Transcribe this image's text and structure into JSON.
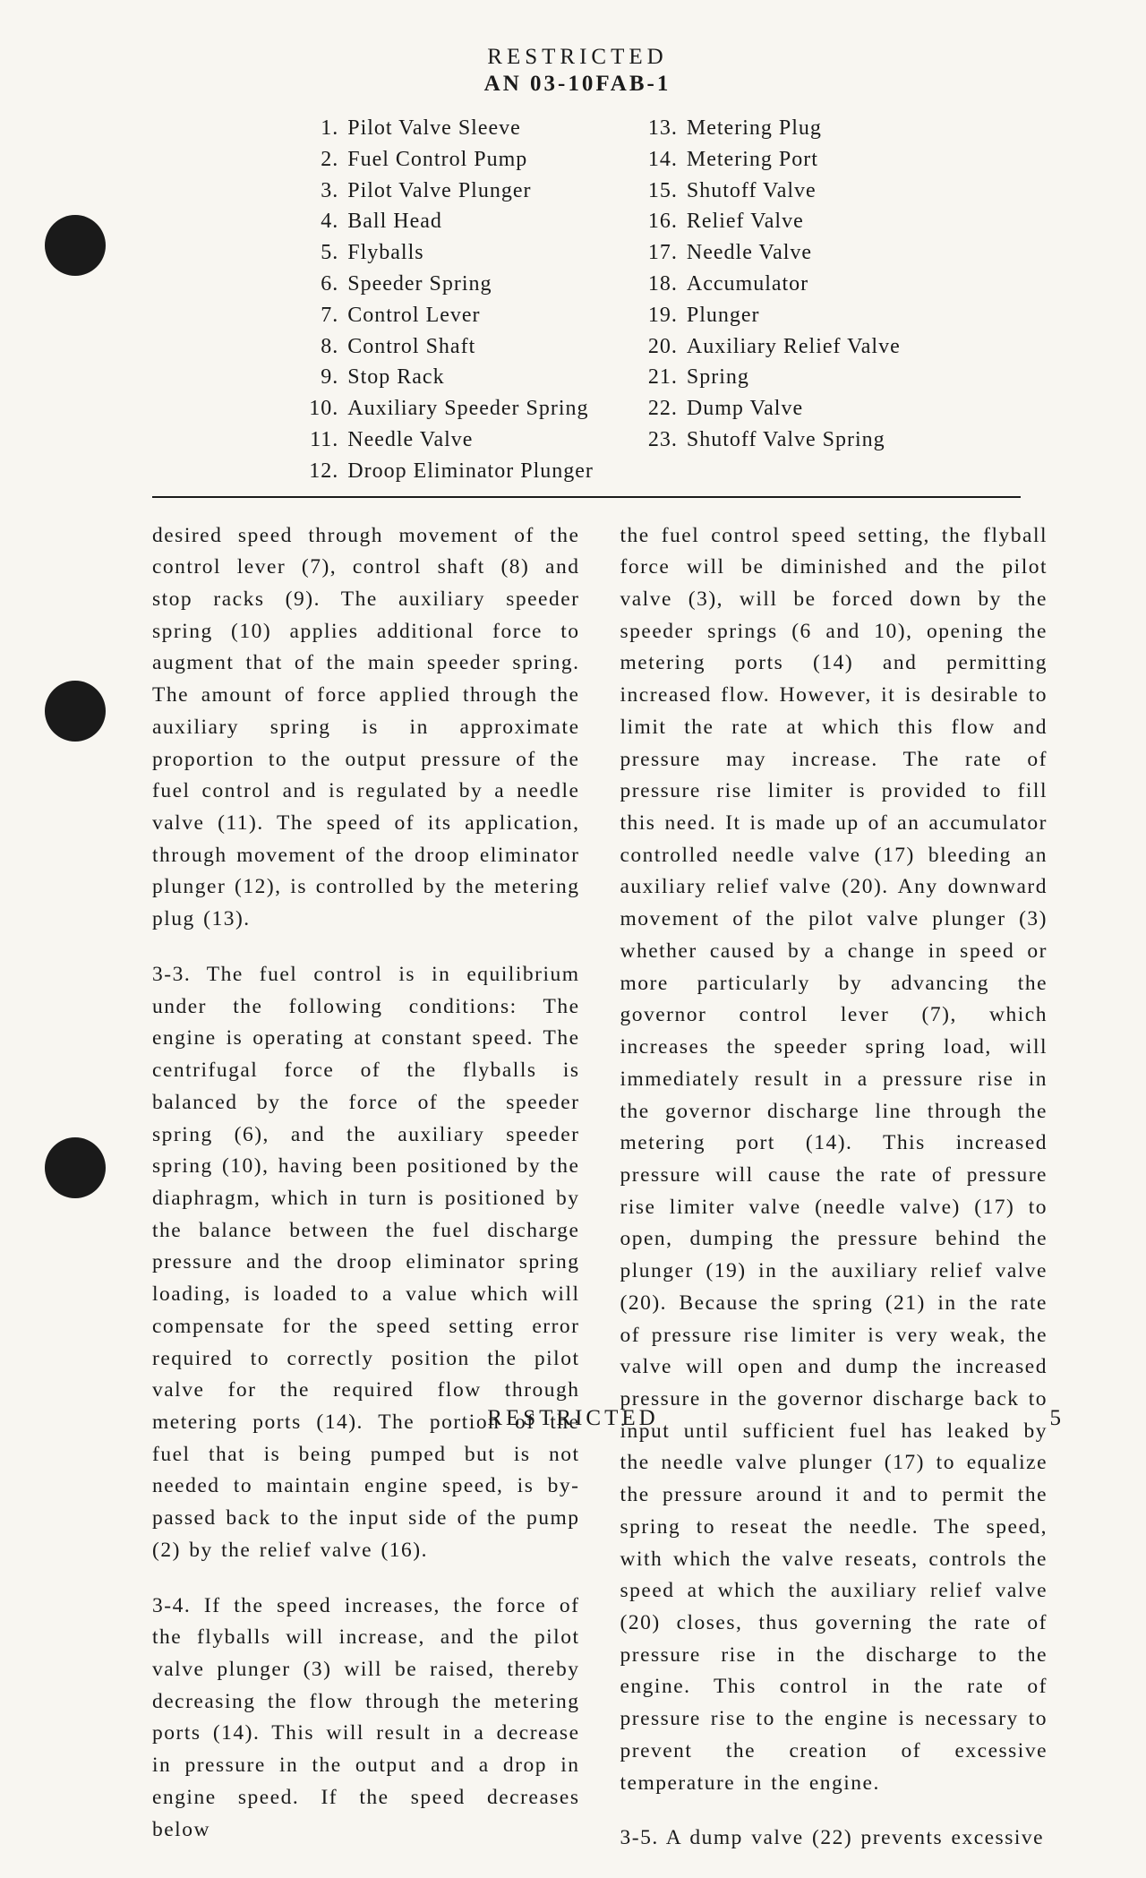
{
  "header": {
    "classification": "RESTRICTED",
    "doc_number": "AN 03-10FAB-1"
  },
  "parts_list": {
    "col1": [
      {
        "n": "1.",
        "label": "Pilot Valve Sleeve"
      },
      {
        "n": "2.",
        "label": "Fuel Control Pump"
      },
      {
        "n": "3.",
        "label": "Pilot Valve Plunger"
      },
      {
        "n": "4.",
        "label": "Ball Head"
      },
      {
        "n": "5.",
        "label": "Flyballs"
      },
      {
        "n": "6.",
        "label": "Speeder Spring"
      },
      {
        "n": "7.",
        "label": "Control Lever"
      },
      {
        "n": "8.",
        "label": "Control Shaft"
      },
      {
        "n": "9.",
        "label": "Stop Rack"
      },
      {
        "n": "10.",
        "label": "Auxiliary Speeder Spring"
      },
      {
        "n": "11.",
        "label": "Needle Valve"
      },
      {
        "n": "12.",
        "label": "Droop Eliminator Plunger"
      }
    ],
    "col2": [
      {
        "n": "13.",
        "label": "Metering Plug"
      },
      {
        "n": "14.",
        "label": "Metering Port"
      },
      {
        "n": "15.",
        "label": "Shutoff Valve"
      },
      {
        "n": "16.",
        "label": "Relief Valve"
      },
      {
        "n": "17.",
        "label": "Needle Valve"
      },
      {
        "n": "18.",
        "label": "Accumulator"
      },
      {
        "n": "19.",
        "label": "Plunger"
      },
      {
        "n": "20.",
        "label": "Auxiliary Relief Valve"
      },
      {
        "n": "21.",
        "label": "Spring"
      },
      {
        "n": "22.",
        "label": "Dump Valve"
      },
      {
        "n": "23.",
        "label": "Shutoff Valve Spring"
      }
    ]
  },
  "body": {
    "left": {
      "p1": "desired speed through movement of the control lever (7), control shaft (8) and stop racks (9). The auxiliary speeder spring (10) applies additional force to augment that of the main speeder spring. The amount of force applied through the auxiliary spring is in approximate proportion to the output pressure of the fuel control and is regulated by a needle valve (11). The speed of its application, through movement of the droop eliminator plunger (12), is controlled by the metering plug (13).",
      "p2": "3-3. The fuel control is in equilibrium under the following conditions: The engine is operating at constant speed. The centrifugal force of the flyballs is balanced by the force of the speeder spring (6), and the auxiliary speeder spring (10), having been positioned by the diaphragm, which in turn is positioned by the balance between the fuel discharge pressure and the droop eliminator spring loading, is loaded to a value which will compensate for the speed setting error required to correctly position the pilot valve for the required flow through metering ports (14). The portion of the fuel that is being pumped but is not needed to maintain engine speed, is by-passed back to the input side of the pump (2) by the relief valve (16).",
      "p3": "3-4. If the speed increases, the force of the flyballs will increase, and the pilot valve plunger (3) will be raised, thereby decreasing the flow through the metering ports (14). This will result in a decrease in pressure in the output and a drop in engine speed. If the speed decreases below"
    },
    "right": {
      "p1": "the fuel control speed setting, the flyball force will be diminished and the pilot valve (3), will be forced down by the speeder springs (6 and 10), opening the metering ports (14) and permitting increased flow. However, it is desirable to limit the rate at which this flow and pressure may increase. The rate of pressure rise limiter is provided to fill this need. It is made up of an accumulator controlled needle valve (17) bleeding an auxiliary relief valve (20). Any downward movement of the pilot valve plunger (3) whether caused by a change in speed or more particularly by advancing the governor control lever (7), which increases the speeder spring load, will immediately result in a pressure rise in the governor discharge line through the metering port (14). This increased pressure will cause the rate of pressure rise limiter valve (needle valve) (17) to open, dumping the pressure behind the plunger (19) in the auxiliary relief valve (20). Because the spring (21) in the rate of pressure rise limiter is very weak, the valve will open and dump the increased pressure in the governor discharge back to input until sufficient fuel has leaked by the needle valve plunger (17) to equalize the pressure around it and to permit the spring to reseat the needle. The speed, with which the valve reseats, controls the speed at which the auxiliary relief valve (20) closes, thus governing the rate of pressure rise in the discharge to the engine. This control in the rate of pressure rise to the engine is necessary to prevent the creation of excessive temperature in the engine.",
      "p2": "3-5. A dump valve (22) prevents excessive"
    }
  },
  "footer": {
    "classification": "RESTRICTED",
    "page_number": "5"
  }
}
